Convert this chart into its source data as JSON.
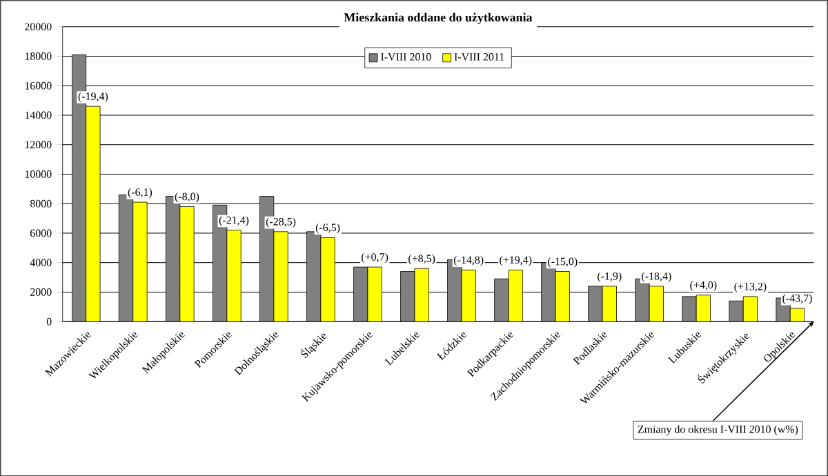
{
  "chart_data": {
    "type": "bar",
    "title": "Mieszkania oddane do użytkowania",
    "categories": [
      "Mazowieckie",
      "Wielkopolskie",
      "Małopolskie",
      "Pomorskie",
      "Dolnośląskie",
      "Śląskie",
      "Kujawsko-pomorskie",
      "Lubelskie",
      "Łódzkie",
      "Podkarpackie",
      "Zachodniopomorskie",
      "Podlaskie",
      "Warmińsko-mazurskie",
      "Lubuskie",
      "Świętokrzyskie",
      "Opolskie"
    ],
    "series": [
      {
        "name": "I-VIII 2010",
        "color": "#808080",
        "values": [
          18100,
          8600,
          8500,
          7900,
          8500,
          6100,
          3700,
          3400,
          4200,
          2900,
          4000,
          2400,
          2900,
          1700,
          1400,
          1600
        ]
      },
      {
        "name": "I-VIII 2011",
        "color": "#ffff00",
        "values": [
          14600,
          8100,
          7800,
          6200,
          6100,
          5700,
          3700,
          3600,
          3500,
          3500,
          3400,
          2400,
          2400,
          1800,
          1700,
          900
        ]
      }
    ],
    "ylim": [
      0,
      20000
    ],
    "yticks": [
      0,
      2000,
      4000,
      6000,
      8000,
      10000,
      12000,
      14000,
      16000,
      18000,
      20000
    ],
    "grid": "y",
    "legend": "top",
    "annotations": [
      {
        "text": "(-19,4)",
        "x": "Mazowieckie",
        "y": 14600
      },
      {
        "text": "(-6,1)",
        "x": "Wielkopolskie",
        "y": 8100
      },
      {
        "text": "(-8,0)",
        "x": "Małopolskie",
        "y": 7800
      },
      {
        "text": "(-21,4)",
        "x": "Pomorskie",
        "y": 6200
      },
      {
        "text": "(-28,5)",
        "x": "Dolnośląskie",
        "y": 6100
      },
      {
        "text": "(-6,5)",
        "x": "Śląskie",
        "y": 5700
      },
      {
        "text": "(+0,7)",
        "x": "Kujawsko-pomorskie",
        "y": 3700
      },
      {
        "text": "(+8,5)",
        "x": "Lubelskie",
        "y": 3600
      },
      {
        "text": "(-14,8)",
        "x": "Łódzkie",
        "y": 3500
      },
      {
        "text": "(+19,4)",
        "x": "Podkarpackie",
        "y": 3500
      },
      {
        "text": "(-15,0)",
        "x": "Zachodniopomorskie",
        "y": 3400
      },
      {
        "text": "(-1,9)",
        "x": "Podlaskie",
        "y": 2400
      },
      {
        "text": "(-18,4)",
        "x": "Warmińsko-mazurskie",
        "y": 2400
      },
      {
        "text": "(+4,0)",
        "x": "Lubuskie",
        "y": 1800
      },
      {
        "text": "(+13,2)",
        "x": "Świętokrzyskie",
        "y": 1700
      },
      {
        "text": "(-43,7)",
        "x": "Opolskie",
        "y": 900
      },
      "Zmiany do okresu I-VIII 2010  (w%)"
    ]
  }
}
